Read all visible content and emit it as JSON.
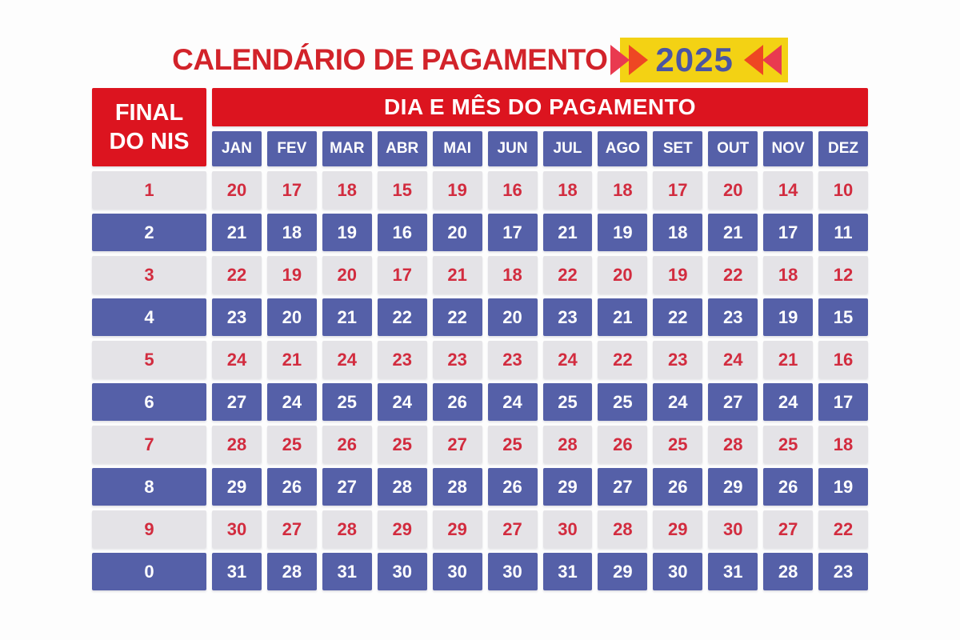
{
  "header": {
    "title": "CALENDÁRIO DE PAGAMENTO",
    "year": "2025"
  },
  "colors": {
    "brand_red": "#dc141f",
    "title_red": "#d2232a",
    "cell_blue": "#5560a8",
    "cell_gray": "#e4e3e7",
    "day_red_text": "#d22c3f",
    "badge_yellow": "#f3d214",
    "year_blue": "#4a55a2",
    "arrow_crimson": "#e93a50",
    "arrow_orange": "#ee4723"
  },
  "chart_data": {
    "type": "table",
    "title": "CALENDÁRIO DE PAGAMENTO 2025",
    "row_header_label": "FINAL DO NIS",
    "column_group_label": "DIA E MÊS DO PAGAMENTO",
    "columns": [
      "JAN",
      "FEV",
      "MAR",
      "ABR",
      "MAI",
      "JUN",
      "JUL",
      "AGO",
      "SET",
      "OUT",
      "NOV",
      "DEZ"
    ],
    "rows": [
      {
        "nis": "1",
        "days": [
          20,
          17,
          18,
          15,
          19,
          16,
          18,
          18,
          17,
          20,
          14,
          10
        ]
      },
      {
        "nis": "2",
        "days": [
          21,
          18,
          19,
          16,
          20,
          17,
          21,
          19,
          18,
          21,
          17,
          11
        ]
      },
      {
        "nis": "3",
        "days": [
          22,
          19,
          20,
          17,
          21,
          18,
          22,
          20,
          19,
          22,
          18,
          12
        ]
      },
      {
        "nis": "4",
        "days": [
          23,
          20,
          21,
          22,
          22,
          20,
          23,
          21,
          22,
          23,
          19,
          15
        ]
      },
      {
        "nis": "5",
        "days": [
          24,
          21,
          24,
          23,
          23,
          23,
          24,
          22,
          23,
          24,
          21,
          16
        ]
      },
      {
        "nis": "6",
        "days": [
          27,
          24,
          25,
          24,
          26,
          24,
          25,
          25,
          24,
          27,
          24,
          17
        ]
      },
      {
        "nis": "7",
        "days": [
          28,
          25,
          26,
          25,
          27,
          25,
          28,
          26,
          25,
          28,
          25,
          18
        ]
      },
      {
        "nis": "8",
        "days": [
          29,
          26,
          27,
          28,
          28,
          26,
          29,
          27,
          26,
          29,
          26,
          19
        ]
      },
      {
        "nis": "9",
        "days": [
          30,
          27,
          28,
          29,
          29,
          27,
          30,
          28,
          29,
          30,
          27,
          22
        ]
      },
      {
        "nis": "0",
        "days": [
          31,
          28,
          31,
          30,
          30,
          30,
          31,
          29,
          30,
          31,
          28,
          23
        ]
      }
    ]
  }
}
